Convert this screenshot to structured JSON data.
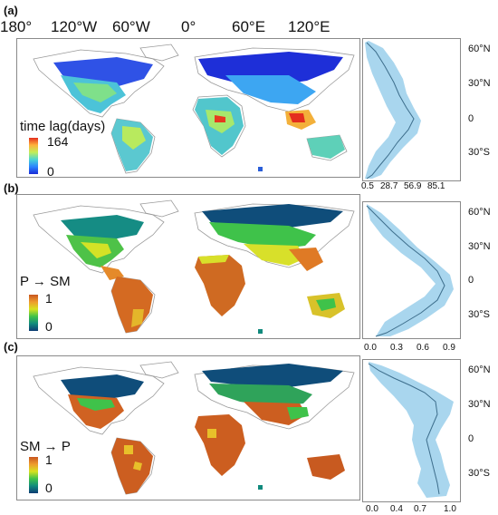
{
  "lon_labels": [
    "180°",
    "120°W",
    "60°W",
    "0°",
    "60°E",
    "120°E"
  ],
  "lat_labels": [
    "60°N",
    "30°N",
    "0",
    "30°S"
  ],
  "panels": [
    {
      "id": "a",
      "label": "(a)",
      "legend_title": "time lag(days)",
      "legend_max": "164",
      "legend_min": "0",
      "colormap": [
        "#1a2bd6",
        "#2a82ff",
        "#49d3d6",
        "#c2ee58",
        "#ffb13b",
        "#e42d1e"
      ],
      "xticks": [
        "0.5",
        "28.7",
        "56.9",
        "85.1"
      ]
    },
    {
      "id": "b",
      "label": "(b)",
      "legend_title": "P → SM",
      "legend_max": "1",
      "legend_min": "0",
      "colormap": [
        "#0d3b74",
        "#118a7d",
        "#3fc24a",
        "#d6e21f",
        "#ee9b2d",
        "#c8561f"
      ],
      "xticks": [
        "0.0",
        "0.3",
        "0.6",
        "0.9"
      ]
    },
    {
      "id": "c",
      "label": "(c)",
      "legend_title": "SM → P",
      "legend_max": "1",
      "legend_min": "0",
      "colormap": [
        "#0d3b74",
        "#118a7d",
        "#3fc24a",
        "#d6e21f",
        "#ee9b2d",
        "#c8561f"
      ],
      "xticks": [
        "0.0",
        "0.4",
        "0.7",
        "1.0"
      ]
    }
  ],
  "colors": {
    "land_outline": "#9a9a9a",
    "profile_line": "#3d6e8c",
    "profile_band": "#a9d6ee"
  }
}
